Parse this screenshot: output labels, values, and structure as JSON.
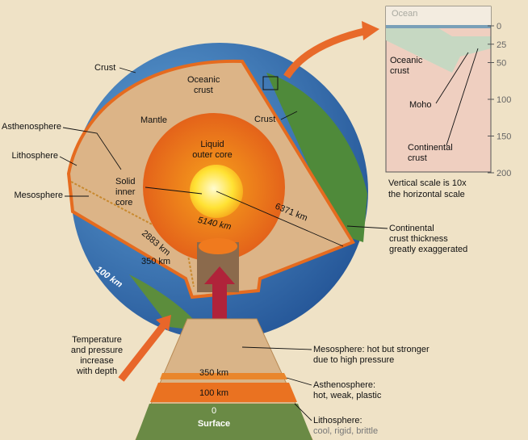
{
  "inset": {
    "ocean": "Ocean",
    "scale": [
      0,
      25,
      50,
      100,
      150,
      200
    ],
    "oceanic_crust": [
      "Oceanic",
      "crust"
    ],
    "moho": "Moho",
    "continental_crust": [
      "Continental",
      "crust"
    ],
    "caption": [
      "Vertical scale is 10x",
      "the horizontal scale"
    ]
  },
  "globe": {
    "crust_left": "Crust",
    "oceanic_crust": [
      "Oceanic",
      "crust"
    ],
    "mantle": "Mantle",
    "crust_right": "Crust",
    "asthenosphere": "Asthenosphere",
    "lithosphere": "Lithosphere",
    "mesosphere": "Mesosphere",
    "outer_core": [
      "Liquid",
      "outer core"
    ],
    "inner_core": [
      "Solid",
      "inner",
      "core"
    ],
    "radius_inner": "5140 km",
    "depth_core": "2883 km",
    "radius_earth": "6371 km",
    "depth_asthenosphere": "350 km",
    "depth_lithosphere": "100 km",
    "note": [
      "Continental",
      "crust thickness",
      "greatly exaggerated"
    ]
  },
  "column": {
    "temperature": [
      "Temperature",
      "and pressure",
      "increase",
      "with depth"
    ],
    "depth_350": "350 km",
    "depth_100": "100 km",
    "depth_0": "0",
    "surface": "Surface",
    "mesosphere": [
      "Mesosphere: hot but stronger",
      "due to high pressure"
    ],
    "asthenosphere": [
      "Asthenosphere:",
      "hot, weak, plastic"
    ],
    "lithosphere": [
      "Lithosphere:",
      "cool, rigid, brittle"
    ]
  }
}
